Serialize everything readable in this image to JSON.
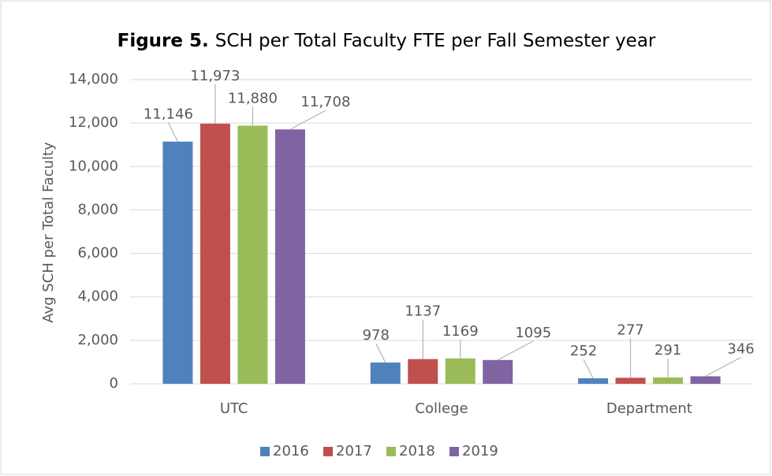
{
  "chart_data": {
    "type": "bar",
    "figure_label": "Figure 5.",
    "title": "SCH per Total Faculty FTE per Fall Semester year",
    "y_label": "Avg SCH per Total Faculty",
    "categories": [
      "UTC",
      "College",
      "Department"
    ],
    "series": [
      {
        "name": "2016",
        "color": "#4f81bd",
        "values": [
          11146,
          978,
          252
        ],
        "value_labels": [
          "11,146",
          "978",
          "252"
        ]
      },
      {
        "name": "2017",
        "color": "#c0504d",
        "values": [
          11973,
          1137,
          277
        ],
        "value_labels": [
          "11,973",
          "1137",
          "277"
        ]
      },
      {
        "name": "2018",
        "color": "#9bbb59",
        "values": [
          11880,
          1169,
          291
        ],
        "value_labels": [
          "11,880",
          "1169",
          "291"
        ]
      },
      {
        "name": "2019",
        "color": "#8064a2",
        "values": [
          11708,
          1095,
          346
        ],
        "value_labels": [
          "11,708",
          "1095",
          "346"
        ]
      }
    ],
    "ylim": [
      0,
      14000
    ],
    "yticks": [
      0,
      {
        "value": 2000,
        "label": "2,000"
      },
      {
        "value": 4000,
        "label": "4,000"
      },
      {
        "value": 6000,
        "label": "6,000"
      },
      {
        "value": 8000,
        "label": "8,000"
      },
      {
        "value": 10000,
        "label": "10,000"
      },
      {
        "value": 12000,
        "label": "12,000"
      },
      {
        "value": 14000,
        "label": "14,000"
      }
    ],
    "grid": true,
    "legend": "bottom"
  }
}
